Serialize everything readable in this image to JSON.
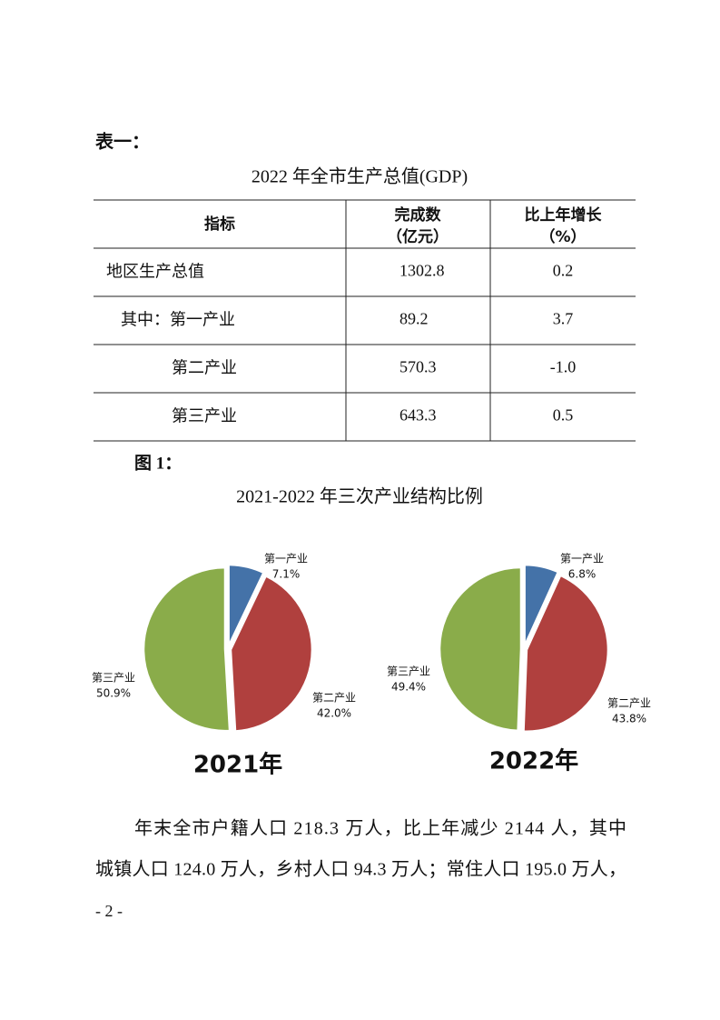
{
  "table_label": "表一：",
  "table_title": "2022 年全市生产总值(GDP)",
  "table": {
    "header": [
      [
        "指标"
      ],
      [
        "完成数",
        "（亿元）"
      ],
      [
        "比上年增长",
        "（%）"
      ]
    ],
    "rows": [
      [
        "地区生产总值",
        "1302.8",
        "0.2"
      ],
      [
        "其中：第一产业",
        "89.2",
        "3.7"
      ],
      [
        "第二产业",
        "570.3",
        "-1.0"
      ],
      [
        "第三产业",
        "643.3",
        "0.5"
      ]
    ]
  },
  "figure_label": "图 1：",
  "figure_title": "2021-2022 年三次产业结构比例",
  "chart_data": [
    {
      "type": "pie",
      "title": "2021年",
      "categories": [
        "第一产业",
        "第二产业",
        "第三产业"
      ],
      "values": [
        7.1,
        42.0,
        50.9
      ],
      "value_labels": [
        "7.1%",
        "42.0%",
        "50.9%"
      ],
      "colors": [
        "#4472a8",
        "#b0403e",
        "#8aac4a"
      ]
    },
    {
      "type": "pie",
      "title": "2022年",
      "categories": [
        "第一产业",
        "第二产业",
        "第三产业"
      ],
      "values": [
        6.8,
        43.8,
        49.4
      ],
      "value_labels": [
        "6.8%",
        "43.8%",
        "49.4%"
      ],
      "colors": [
        "#4472a8",
        "#b0403e",
        "#8aac4a"
      ]
    }
  ],
  "paragraph": [
    "年末全市户籍人口 218.3 万人，比上年减少 2144 人，其中",
    "城镇人口 124.0 万人，乡村人口 94.3 万人；常住人口 195.0 万人，"
  ],
  "page_number": "- 2 -"
}
